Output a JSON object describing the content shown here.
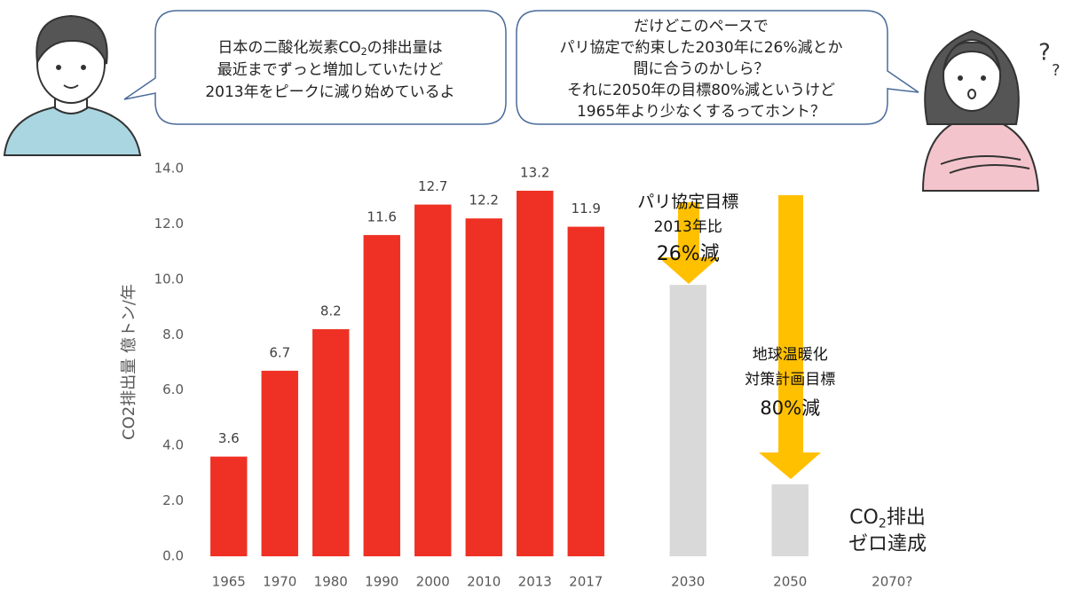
{
  "chart_data": {
    "type": "bar",
    "y_label": "CO2排出量 億トン/年",
    "categories": [
      "1965",
      "1970",
      "1980",
      "1990",
      "2000",
      "2010",
      "2013",
      "2017",
      null,
      "2030",
      null,
      "2050",
      null,
      "2070?"
    ],
    "series": [
      {
        "color": "#ee3124",
        "show_labels": true,
        "values": [
          3.6,
          6.7,
          8.2,
          11.6,
          12.7,
          12.2,
          13.2,
          11.9,
          null,
          null,
          null,
          null,
          null,
          null
        ]
      },
      {
        "color": "#d9d9d9",
        "show_labels": false,
        "values": [
          null,
          null,
          null,
          null,
          null,
          null,
          null,
          null,
          null,
          9.8,
          null,
          2.6,
          null,
          null
        ]
      }
    ],
    "ylim": [
      0,
      14
    ],
    "yticks": [
      {
        "value": 0,
        "label": "0.0"
      },
      {
        "value": 2,
        "label": "2.0"
      },
      {
        "value": 4,
        "label": "4.0"
      },
      {
        "value": 6,
        "label": "6.0"
      },
      {
        "value": 8,
        "label": "8.0"
      },
      {
        "value": 10,
        "label": "10.0"
      },
      {
        "value": 12,
        "label": "12.0"
      },
      {
        "value": 14,
        "label": "14.0"
      }
    ],
    "grid": false,
    "bubble_left": [
      [
        "日本の二酸化炭素CO",
        "2",
        "の排出量は"
      ],
      [
        "最近までずっと増加していたけど"
      ],
      [
        "2013年をピークに減り始めているよ"
      ]
    ],
    "bubble_right": [
      "だけどこのペースで",
      "パリ協定で約束した2030年に26%減とか",
      "間に合うのかしら？",
      "それに2050年の目標80%減というけど",
      "1965年より少なくするってホント？"
    ],
    "annotation_2030": [
      "パリ協定目標",
      "2013年比",
      "26%減"
    ],
    "annotation_2050": [
      "地球温暖化",
      "対策計画目標",
      "80%減"
    ],
    "annotation_2070": [
      [
        "CO",
        "2",
        "排出"
      ],
      [
        "ゼロ達成"
      ]
    ]
  }
}
